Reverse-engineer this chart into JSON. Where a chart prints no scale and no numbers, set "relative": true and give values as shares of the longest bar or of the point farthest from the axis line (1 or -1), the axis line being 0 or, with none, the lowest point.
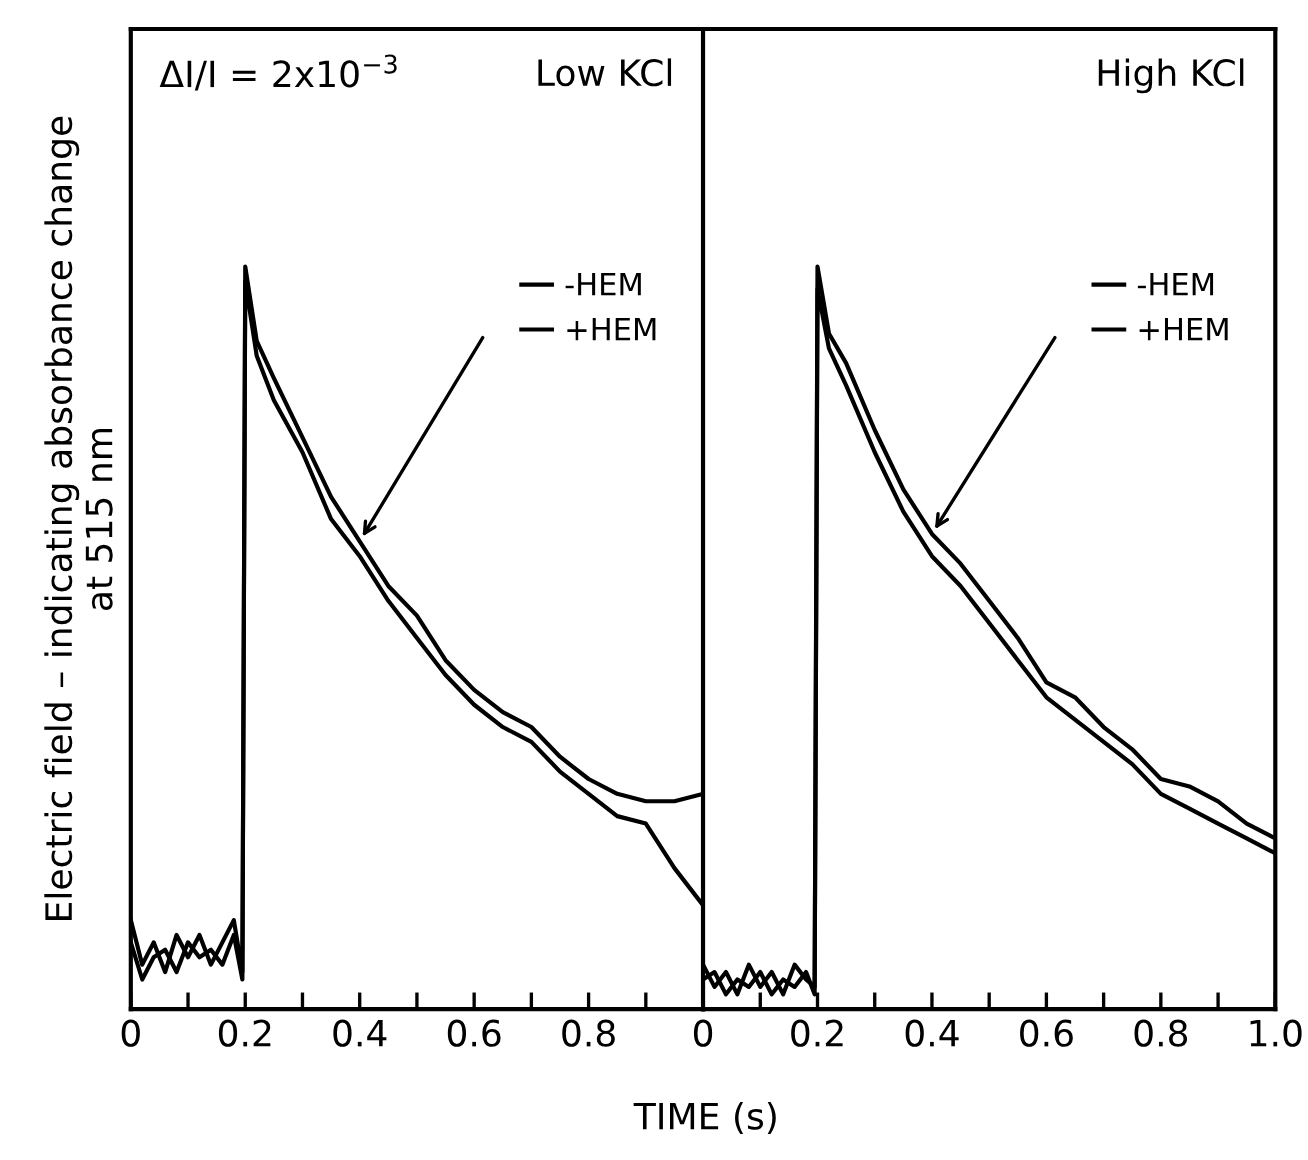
{
  "chart_data": [
    {
      "type": "line",
      "title": "Low KCl",
      "xlabel": "TIME (s)",
      "ylabel": "Electric field – indicating absorbance change\nat 515 nm",
      "relative": true,
      "legend": "top right",
      "xlim": [
        0,
        1.0
      ],
      "xticks": [
        0,
        {
          "value": 0.1,
          "label": null
        },
        0.2,
        {
          "value": 0.3,
          "label": null
        },
        0.4,
        {
          "value": 0.5,
          "label": null
        },
        0.6,
        {
          "value": 0.7,
          "label": null
        },
        0.8,
        {
          "value": 0.9,
          "label": null
        }
      ],
      "annotations": [
        "ΔI/I = 2x10$^{−3}$"
      ],
      "x": [
        0,
        0.02,
        0.04,
        0.06,
        0.08,
        0.1,
        0.12,
        0.14,
        0.16,
        0.18,
        0.195,
        0.2,
        0.22,
        0.25,
        0.3,
        0.35,
        0.4,
        0.45,
        0.5,
        0.55,
        0.6,
        0.65,
        0.7,
        0.75,
        0.8,
        0.85,
        0.9,
        0.95,
        1.0
      ],
      "series": [
        {
          "name": "-HEM",
          "color": "#000000",
          "values": [
            0.12,
            0.06,
            0.09,
            0.05,
            0.1,
            0.07,
            0.1,
            0.06,
            0.09,
            0.12,
            0.05,
            1.0,
            0.9,
            0.85,
            0.77,
            0.69,
            0.63,
            0.57,
            0.53,
            0.47,
            0.43,
            0.4,
            0.38,
            0.34,
            0.31,
            0.29,
            0.28,
            0.28,
            0.29
          ]
        },
        {
          "name": "+HEM",
          "color": "#000000",
          "values": [
            0.09,
            0.04,
            0.07,
            0.08,
            0.05,
            0.09,
            0.07,
            0.08,
            0.06,
            0.1,
            0.04,
            0.98,
            0.88,
            0.82,
            0.75,
            0.66,
            0.61,
            0.55,
            0.5,
            0.45,
            0.41,
            0.38,
            0.36,
            0.32,
            0.29,
            0.26,
            0.25,
            0.19,
            0.14
          ]
        }
      ]
    },
    {
      "type": "line",
      "title": "High KCl",
      "relative": true,
      "legend": "top right",
      "xlim": [
        0,
        1.0
      ],
      "xticks": [
        0,
        {
          "value": 0.1,
          "label": null
        },
        0.2,
        {
          "value": 0.3,
          "label": null
        },
        0.4,
        {
          "value": 0.5,
          "label": null
        },
        0.6,
        {
          "value": 0.7,
          "label": null
        },
        0.8,
        {
          "value": 0.9,
          "label": null
        },
        {
          "value": 1.0,
          "label": "1.0"
        }
      ],
      "x": [
        0,
        0.02,
        0.04,
        0.06,
        0.08,
        0.1,
        0.12,
        0.14,
        0.16,
        0.18,
        0.195,
        0.2,
        0.22,
        0.25,
        0.3,
        0.35,
        0.4,
        0.45,
        0.5,
        0.55,
        0.6,
        0.65,
        0.7,
        0.75,
        0.8,
        0.85,
        0.9,
        0.95,
        1.0
      ],
      "series": [
        {
          "name": "-HEM",
          "color": "#000000",
          "values": [
            0.06,
            0.03,
            0.05,
            0.02,
            0.06,
            0.03,
            0.05,
            0.02,
            0.06,
            0.04,
            0.03,
            1.0,
            0.91,
            0.87,
            0.78,
            0.7,
            0.64,
            0.6,
            0.55,
            0.5,
            0.44,
            0.42,
            0.38,
            0.35,
            0.31,
            0.3,
            0.28,
            0.25,
            0.23
          ]
        },
        {
          "name": "+HEM",
          "color": "#000000",
          "values": [
            0.04,
            0.05,
            0.02,
            0.04,
            0.03,
            0.05,
            0.02,
            0.04,
            0.03,
            0.05,
            0.02,
            0.97,
            0.89,
            0.84,
            0.75,
            0.67,
            0.61,
            0.57,
            0.52,
            0.47,
            0.42,
            0.39,
            0.36,
            0.33,
            0.29,
            0.27,
            0.25,
            0.23,
            0.21
          ]
        }
      ]
    }
  ]
}
